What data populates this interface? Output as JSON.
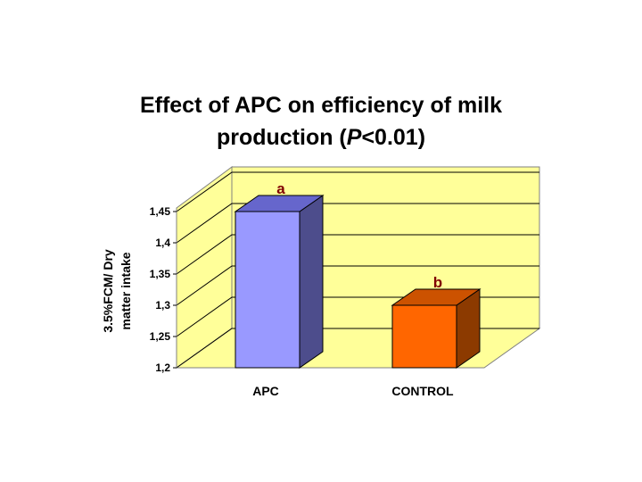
{
  "chart_data": {
    "type": "bar",
    "style": "3d",
    "title_line1": "Effect of APC on efficiency of milk",
    "title_line2_prefix": "production (",
    "title_line2_italic": "P",
    "title_line2_suffix": "<0.01)",
    "ylabel_line1": "3.5%FCM/ Dry",
    "ylabel_line2": "matter intake",
    "xlabel": "",
    "categories": [
      "APC",
      "CONTROL"
    ],
    "values": [
      1.45,
      1.3
    ],
    "annotations": [
      "a",
      "b"
    ],
    "ylim": [
      1.2,
      1.45
    ],
    "yticks": [
      1.2,
      1.25,
      1.3,
      1.35,
      1.4,
      1.45
    ],
    "ytick_labels": [
      "1,2",
      "1,25",
      "1,3",
      "1,35",
      "1,4",
      "1,45"
    ],
    "grid": true,
    "colors": {
      "bars_front": [
        "#9999ff",
        "#ff6600"
      ],
      "bars_top": [
        "#6666cc",
        "#cc5200"
      ],
      "bars_side": [
        "#4d4d8c",
        "#8c3a00"
      ],
      "wall": "#ffff99",
      "floor": "#ffff99",
      "annotation": "#800000"
    }
  }
}
